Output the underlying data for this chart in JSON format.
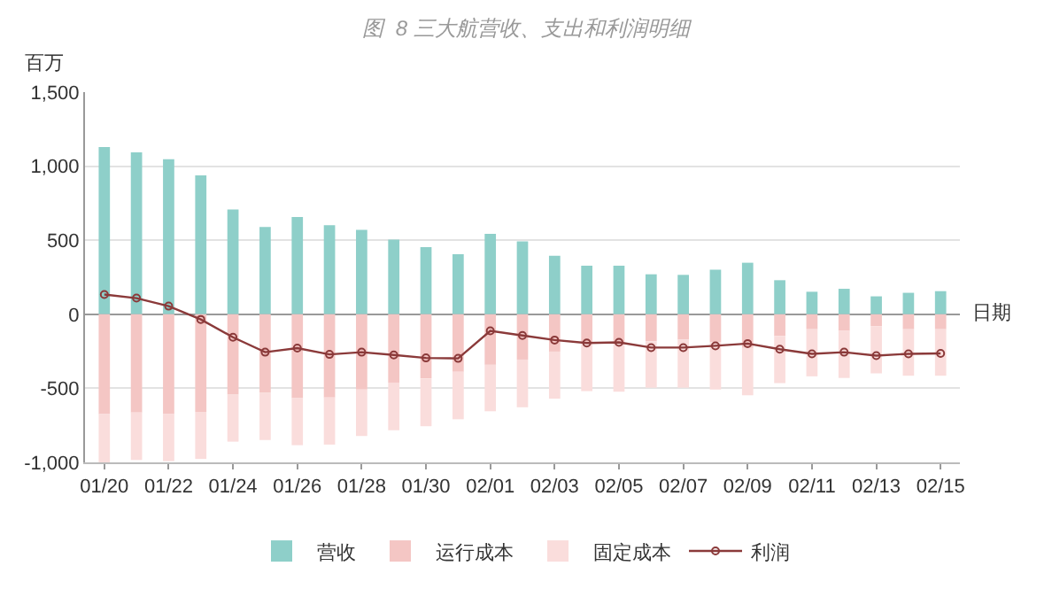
{
  "chart_data": {
    "type": "bar",
    "title": "图  8 三大航营收、支出和利润明细",
    "ylabel": "百万",
    "xlabel": "日期",
    "categories": [
      "01/20",
      null,
      "01/22",
      null,
      "01/24",
      null,
      "01/26",
      null,
      "01/28",
      null,
      "01/30",
      null,
      "02/01",
      null,
      "02/03",
      null,
      "02/05",
      null,
      "02/07",
      null,
      "02/09",
      null,
      "02/11",
      null,
      "02/13",
      null,
      "02/15"
    ],
    "stacked": true,
    "series": [
      {
        "name": "营收",
        "color": "#8ecfc9",
        "values": [
          1129,
          1094,
          1047,
          938,
          707,
          590,
          656,
          602,
          570,
          504,
          453,
          406,
          543,
          492,
          395,
          328,
          328,
          270,
          266,
          301,
          348,
          230,
          152,
          172,
          121,
          145,
          156
        ]
      },
      {
        "name": "运行成本",
        "color": "#f4c6c4",
        "values": [
          -674,
          -663,
          -674,
          -659,
          -543,
          -531,
          -566,
          -562,
          -508,
          -461,
          -434,
          -388,
          -341,
          -306,
          -252,
          -199,
          -203,
          -182,
          -171,
          -188,
          -227,
          -147,
          -101,
          -112,
          -81,
          -101,
          -101
        ]
      },
      {
        "name": "固定成本",
        "color": "#fadddc",
        "values": [
          -326,
          -321,
          -318,
          -318,
          -317,
          -318,
          -318,
          -318,
          -314,
          -322,
          -322,
          -321,
          -314,
          -322,
          -318,
          -320,
          -320,
          -314,
          -325,
          -320,
          -320,
          -318,
          -318,
          -318,
          -318,
          -314,
          -314
        ]
      },
      {
        "name": "利润",
        "type": "line",
        "color": "#8b3a3a",
        "marker": "circle",
        "values": [
          133,
          109,
          55,
          -35,
          -155,
          -256,
          -229,
          -271,
          -256,
          -275,
          -295,
          -298,
          -112,
          -143,
          -174,
          -194,
          -190,
          -225,
          -225,
          -213,
          -198,
          -236,
          -267,
          -256,
          -279,
          -267,
          -264
        ]
      }
    ],
    "ylim": [
      -1000,
      1500
    ],
    "yticks": [
      {
        "value": -1000,
        "label": "-1,000"
      },
      -500,
      0,
      500,
      {
        "value": 1000,
        "label": "1,000"
      },
      {
        "value": 1500,
        "label": "1,500"
      }
    ],
    "grid": "y",
    "legend": "bottom"
  }
}
